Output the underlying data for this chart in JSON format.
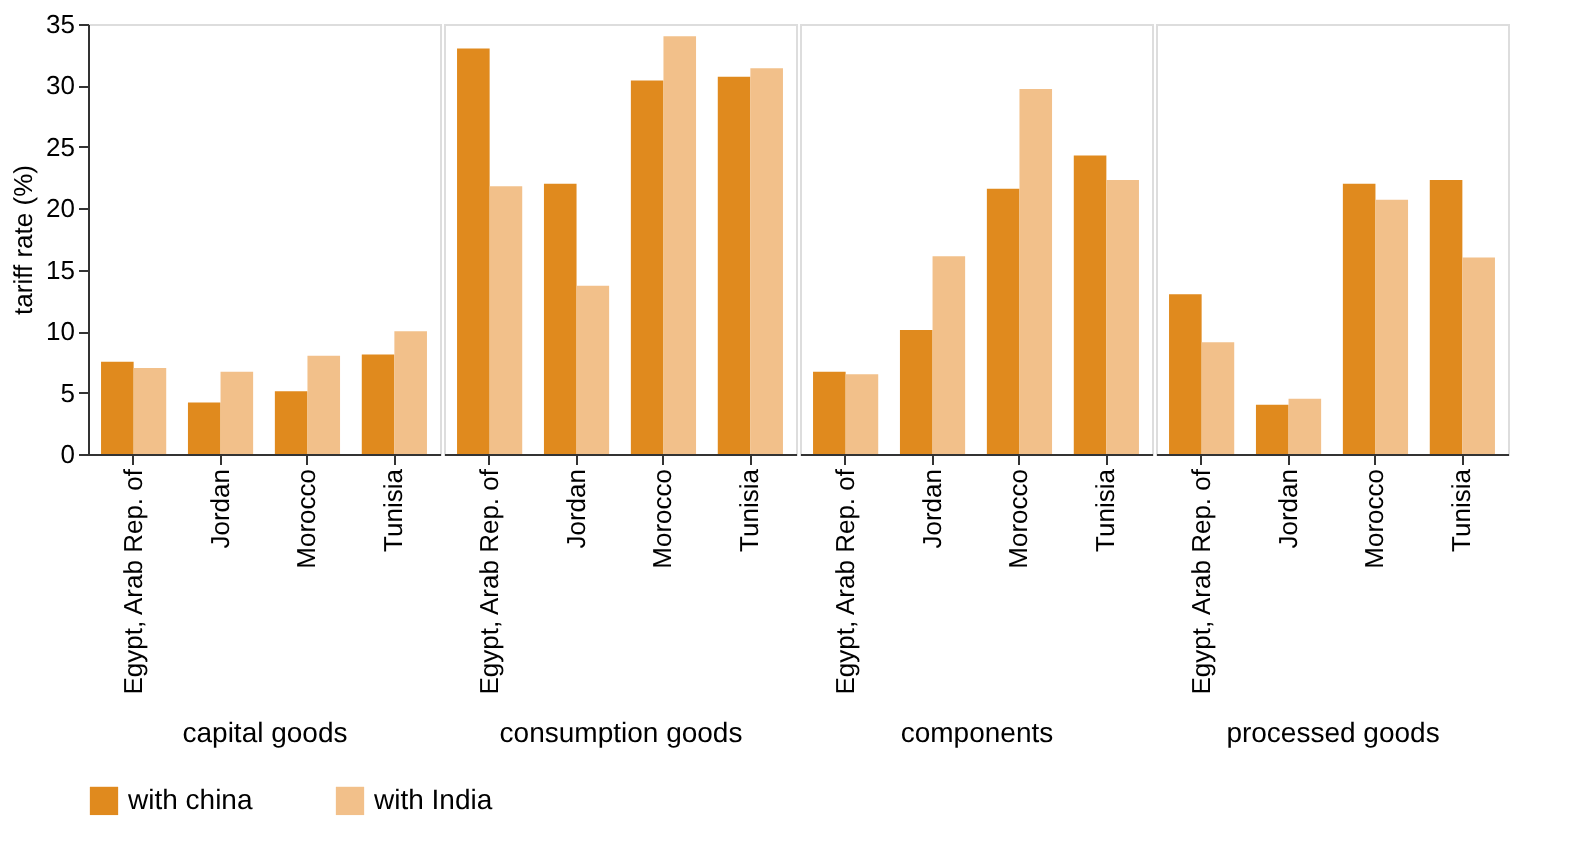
{
  "chart_data": [
    {
      "type": "bar",
      "xlabel": "capital goods",
      "ylabel": "tariff rate (%)",
      "categories": [
        "Egypt, Arab Rep. of",
        "Jordan",
        "Morocco",
        "Tunisia"
      ],
      "ylim": [
        0,
        35
      ],
      "yticks": [
        0,
        5,
        10,
        15,
        20,
        25,
        30,
        35
      ],
      "grid": false,
      "legend": "bottom",
      "series": [
        {
          "name": "with china",
          "color": "#e08a1e",
          "values": [
            7.5,
            4.2,
            5.1,
            8.1
          ]
        },
        {
          "name": "with India",
          "color": "#f2c08a",
          "values": [
            7.0,
            6.7,
            8.0,
            10.0
          ]
        }
      ]
    },
    {
      "type": "bar",
      "xlabel": "consumption goods",
      "categories": [
        "Egypt, Arab Rep. of",
        "Jordan",
        "Morocco",
        "Tunisia"
      ],
      "ylim": [
        0,
        35
      ],
      "tick_labels": "x",
      "grid": false,
      "series": [
        {
          "name": "with china",
          "color": "#e08a1e",
          "values": [
            33.0,
            22.0,
            30.4,
            30.7
          ]
        },
        {
          "name": "with India",
          "color": "#f2c08a",
          "values": [
            21.8,
            13.7,
            34.0,
            31.4
          ]
        }
      ]
    },
    {
      "type": "bar",
      "xlabel": "components",
      "categories": [
        "Egypt, Arab Rep. of",
        "Jordan",
        "Morocco",
        "Tunisia"
      ],
      "ylim": [
        0,
        35
      ],
      "tick_labels": "x",
      "grid": false,
      "series": [
        {
          "name": "with china",
          "color": "#e08a1e",
          "values": [
            6.7,
            10.1,
            21.6,
            24.3
          ]
        },
        {
          "name": "with India",
          "color": "#f2c08a",
          "values": [
            6.5,
            16.1,
            29.7,
            22.3
          ]
        }
      ]
    },
    {
      "type": "bar",
      "xlabel": "processed goods",
      "categories": [
        "Egypt, Arab Rep. of",
        "Jordan",
        "Morocco",
        "Tunisia"
      ],
      "ylim": [
        0,
        35
      ],
      "tick_labels": "x",
      "grid": false,
      "series": [
        {
          "name": "with china",
          "color": "#e08a1e",
          "values": [
            13.0,
            4.0,
            22.0,
            22.3
          ]
        },
        {
          "name": "with India",
          "color": "#f2c08a",
          "values": [
            9.1,
            4.5,
            20.7,
            16.0
          ]
        }
      ]
    }
  ]
}
